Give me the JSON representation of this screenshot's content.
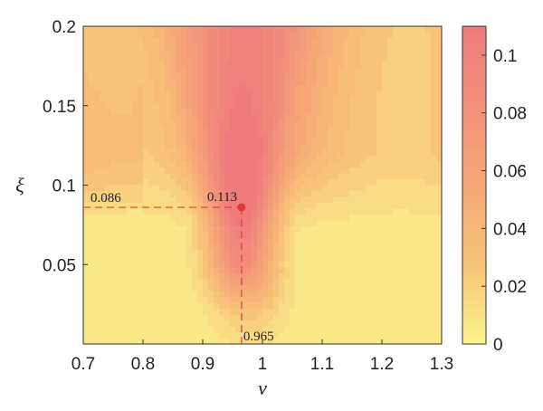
{
  "chart_data": {
    "type": "heatmap",
    "title": "",
    "xlabel": "ν",
    "ylabel": "ξ",
    "xlim": [
      0.7,
      1.3
    ],
    "ylim": [
      0.0,
      0.2
    ],
    "x_ticks": [
      "0.7",
      "0.8",
      "0.9",
      "1",
      "1.1",
      "1.2",
      "1.3"
    ],
    "y_ticks": [
      "0.05",
      "0.1",
      "0.15",
      "0.2"
    ],
    "colorbar": {
      "range": [
        0,
        0.11
      ],
      "ticks": [
        "0",
        "0.02",
        "0.04",
        "0.06",
        "0.08",
        "0.1"
      ],
      "colors": [
        "#fbf38c",
        "#f7c479",
        "#f6a877",
        "#f3907a",
        "#ef7b7d"
      ]
    },
    "grid": false,
    "peak": {
      "x": 0.965,
      "y": 0.086,
      "value": 0.113,
      "color": "#e8393a"
    },
    "annotations": {
      "peak_value": "0.113",
      "x_marker": "0.965",
      "y_marker": "0.086"
    },
    "surface_description": {
      "ridge": [
        {
          "y": 0.2,
          "center": 0.97,
          "sigma": 0.1,
          "peak": 0.082
        },
        {
          "y": 0.15,
          "center": 0.965,
          "sigma": 0.075,
          "peak": 0.088
        },
        {
          "y": 0.1,
          "center": 0.965,
          "sigma": 0.05,
          "peak": 0.106
        },
        {
          "y": 0.086,
          "center": 0.965,
          "sigma": 0.042,
          "peak": 0.113
        },
        {
          "y": 0.05,
          "center": 0.965,
          "sigma": 0.04,
          "peak": 0.085
        },
        {
          "y": 0.02,
          "center": 0.975,
          "sigma": 0.045,
          "peak": 0.025
        },
        {
          "y": 0.0,
          "center": 0.98,
          "sigma": 0.05,
          "peak": 0.008
        }
      ]
    }
  }
}
